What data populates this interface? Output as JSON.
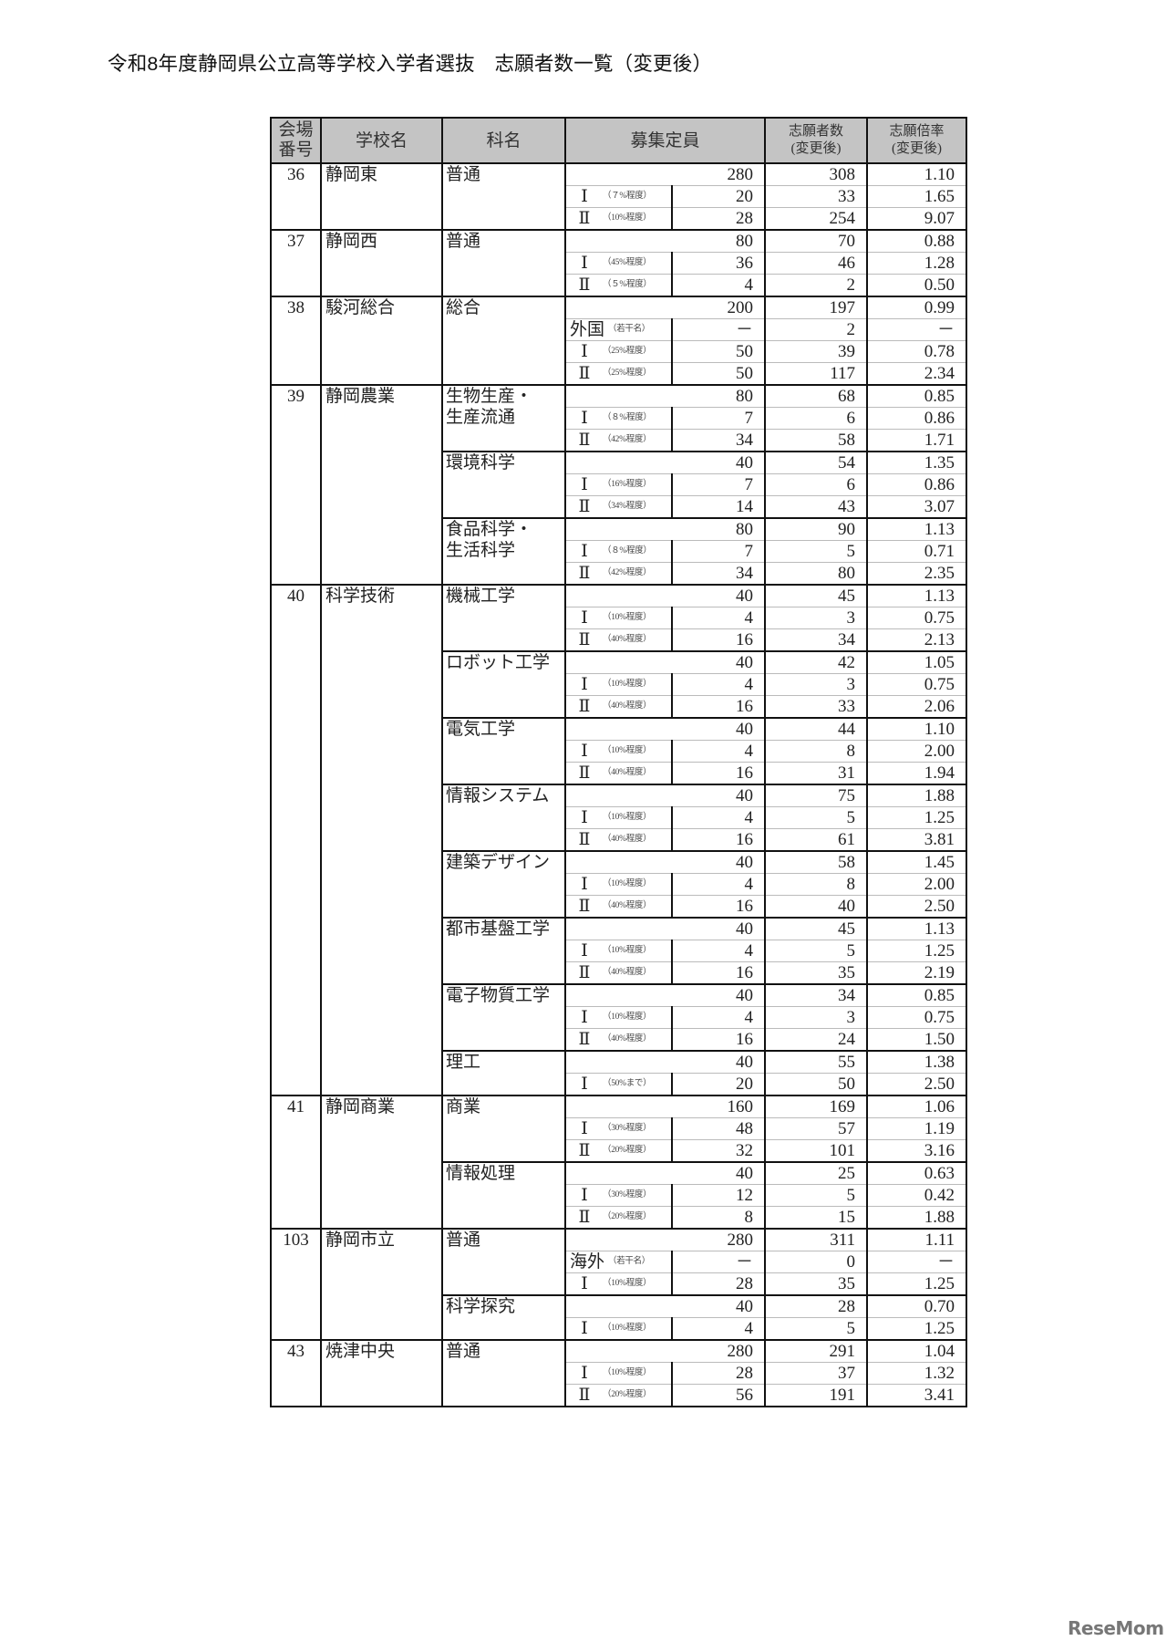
{
  "title": "令和8年度静岡県公立高等学校入学者選抜　志願者数一覧（変更後）",
  "header": {
    "venue_no": [
      "会場",
      "番号"
    ],
    "school": "学校名",
    "dept": "科名",
    "quota": "募集定員",
    "applicants": [
      "志願者数",
      "(変更後)"
    ],
    "ratio": [
      "志願倍率",
      "(変更後)"
    ]
  },
  "schools": [
    {
      "no": "36",
      "name": "静岡東",
      "depts": [
        {
          "name": [
            "普通"
          ],
          "total": [
            "280",
            "308",
            "1.10"
          ],
          "subs": [
            {
              "label": "Ⅰ",
              "note": "（７%程度）",
              "values": [
                "20",
                "33",
                "1.65"
              ]
            },
            {
              "label": "Ⅱ",
              "note": "（10%程度）",
              "values": [
                "28",
                "254",
                "9.07"
              ]
            }
          ]
        }
      ]
    },
    {
      "no": "37",
      "name": "静岡西",
      "depts": [
        {
          "name": [
            "普通"
          ],
          "total": [
            "80",
            "70",
            "0.88"
          ],
          "subs": [
            {
              "label": "Ⅰ",
              "note": "（45%程度）",
              "values": [
                "36",
                "46",
                "1.28"
              ]
            },
            {
              "label": "Ⅱ",
              "note": "（５%程度）",
              "values": [
                "4",
                "2",
                "0.50"
              ]
            }
          ]
        }
      ]
    },
    {
      "no": "38",
      "name": "駿河総合",
      "depts": [
        {
          "name": [
            "総合"
          ],
          "total": [
            "200",
            "197",
            "0.99"
          ],
          "subs": [
            {
              "label": "外国",
              "note": "（若干名）",
              "values": [
                "－",
                "2",
                "－"
              ]
            },
            {
              "label": "Ⅰ",
              "note": "（25%程度）",
              "values": [
                "50",
                "39",
                "0.78"
              ]
            },
            {
              "label": "Ⅱ",
              "note": "（25%程度）",
              "values": [
                "50",
                "117",
                "2.34"
              ]
            }
          ]
        }
      ]
    },
    {
      "no": "39",
      "name": "静岡農業",
      "depts": [
        {
          "name": [
            "生物生産・",
            "生産流通"
          ],
          "total": [
            "80",
            "68",
            "0.85"
          ],
          "subs": [
            {
              "label": "Ⅰ",
              "note": "（８%程度）",
              "values": [
                "7",
                "6",
                "0.86"
              ]
            },
            {
              "label": "Ⅱ",
              "note": "（42%程度）",
              "values": [
                "34",
                "58",
                "1.71"
              ]
            }
          ]
        },
        {
          "name": [
            "環境科学"
          ],
          "total": [
            "40",
            "54",
            "1.35"
          ],
          "subs": [
            {
              "label": "Ⅰ",
              "note": "（16%程度）",
              "values": [
                "7",
                "6",
                "0.86"
              ]
            },
            {
              "label": "Ⅱ",
              "note": "（34%程度）",
              "values": [
                "14",
                "43",
                "3.07"
              ]
            }
          ]
        },
        {
          "name": [
            "食品科学・",
            "生活科学"
          ],
          "total": [
            "80",
            "90",
            "1.13"
          ],
          "subs": [
            {
              "label": "Ⅰ",
              "note": "（８%程度）",
              "values": [
                "7",
                "5",
                "0.71"
              ]
            },
            {
              "label": "Ⅱ",
              "note": "（42%程度）",
              "values": [
                "34",
                "80",
                "2.35"
              ]
            }
          ]
        }
      ]
    },
    {
      "no": "40",
      "name": "科学技術",
      "depts": [
        {
          "name": [
            "機械工学"
          ],
          "total": [
            "40",
            "45",
            "1.13"
          ],
          "subs": [
            {
              "label": "Ⅰ",
              "note": "（10%程度）",
              "values": [
                "4",
                "3",
                "0.75"
              ]
            },
            {
              "label": "Ⅱ",
              "note": "（40%程度）",
              "values": [
                "16",
                "34",
                "2.13"
              ]
            }
          ]
        },
        {
          "name": [
            "ロボット工学"
          ],
          "total": [
            "40",
            "42",
            "1.05"
          ],
          "subs": [
            {
              "label": "Ⅰ",
              "note": "（10%程度）",
              "values": [
                "4",
                "3",
                "0.75"
              ]
            },
            {
              "label": "Ⅱ",
              "note": "（40%程度）",
              "values": [
                "16",
                "33",
                "2.06"
              ]
            }
          ]
        },
        {
          "name": [
            "電気工学"
          ],
          "total": [
            "40",
            "44",
            "1.10"
          ],
          "subs": [
            {
              "label": "Ⅰ",
              "note": "（10%程度）",
              "values": [
                "4",
                "8",
                "2.00"
              ]
            },
            {
              "label": "Ⅱ",
              "note": "（40%程度）",
              "values": [
                "16",
                "31",
                "1.94"
              ]
            }
          ]
        },
        {
          "name": [
            "情報システム"
          ],
          "total": [
            "40",
            "75",
            "1.88"
          ],
          "subs": [
            {
              "label": "Ⅰ",
              "note": "（10%程度）",
              "values": [
                "4",
                "5",
                "1.25"
              ]
            },
            {
              "label": "Ⅱ",
              "note": "（40%程度）",
              "values": [
                "16",
                "61",
                "3.81"
              ]
            }
          ]
        },
        {
          "name": [
            "建築デザイン"
          ],
          "total": [
            "40",
            "58",
            "1.45"
          ],
          "subs": [
            {
              "label": "Ⅰ",
              "note": "（10%程度）",
              "values": [
                "4",
                "8",
                "2.00"
              ]
            },
            {
              "label": "Ⅱ",
              "note": "（40%程度）",
              "values": [
                "16",
                "40",
                "2.50"
              ]
            }
          ]
        },
        {
          "name": [
            "都市基盤工学"
          ],
          "total": [
            "40",
            "45",
            "1.13"
          ],
          "subs": [
            {
              "label": "Ⅰ",
              "note": "（10%程度）",
              "values": [
                "4",
                "5",
                "1.25"
              ]
            },
            {
              "label": "Ⅱ",
              "note": "（40%程度）",
              "values": [
                "16",
                "35",
                "2.19"
              ]
            }
          ]
        },
        {
          "name": [
            "電子物質工学"
          ],
          "total": [
            "40",
            "34",
            "0.85"
          ],
          "subs": [
            {
              "label": "Ⅰ",
              "note": "（10%程度）",
              "values": [
                "4",
                "3",
                "0.75"
              ]
            },
            {
              "label": "Ⅱ",
              "note": "（40%程度）",
              "values": [
                "16",
                "24",
                "1.50"
              ]
            }
          ]
        },
        {
          "name": [
            "理工"
          ],
          "total": [
            "40",
            "55",
            "1.38"
          ],
          "subs": [
            {
              "label": "Ⅰ",
              "note": "（50%まで）",
              "values": [
                "20",
                "50",
                "2.50"
              ]
            }
          ]
        }
      ]
    },
    {
      "no": "41",
      "name": "静岡商業",
      "depts": [
        {
          "name": [
            "商業"
          ],
          "total": [
            "160",
            "169",
            "1.06"
          ],
          "subs": [
            {
              "label": "Ⅰ",
              "note": "（30%程度）",
              "values": [
                "48",
                "57",
                "1.19"
              ]
            },
            {
              "label": "Ⅱ",
              "note": "（20%程度）",
              "values": [
                "32",
                "101",
                "3.16"
              ]
            }
          ]
        },
        {
          "name": [
            "情報処理"
          ],
          "total": [
            "40",
            "25",
            "0.63"
          ],
          "subs": [
            {
              "label": "Ⅰ",
              "note": "（30%程度）",
              "values": [
                "12",
                "5",
                "0.42"
              ]
            },
            {
              "label": "Ⅱ",
              "note": "（20%程度）",
              "values": [
                "8",
                "15",
                "1.88"
              ]
            }
          ]
        }
      ]
    },
    {
      "no": "103",
      "name": "静岡市立",
      "depts": [
        {
          "name": [
            "普通"
          ],
          "total": [
            "280",
            "311",
            "1.11"
          ],
          "subs": [
            {
              "label": "海外",
              "note": "（若干名）",
              "values": [
                "－",
                "0",
                "－"
              ]
            },
            {
              "label": "Ⅰ",
              "note": "（10%程度）",
              "values": [
                "28",
                "35",
                "1.25"
              ]
            }
          ]
        },
        {
          "name": [
            "科学探究"
          ],
          "total": [
            "40",
            "28",
            "0.70"
          ],
          "subs": [
            {
              "label": "Ⅰ",
              "note": "（10%程度）",
              "values": [
                "4",
                "5",
                "1.25"
              ]
            }
          ]
        }
      ]
    },
    {
      "no": "43",
      "name": "焼津中央",
      "depts": [
        {
          "name": [
            "普通"
          ],
          "total": [
            "280",
            "291",
            "1.04"
          ],
          "subs": [
            {
              "label": "Ⅰ",
              "note": "（10%程度）",
              "values": [
                "28",
                "37",
                "1.32"
              ]
            },
            {
              "label": "Ⅱ",
              "note": "（20%程度）",
              "values": [
                "56",
                "191",
                "3.41"
              ]
            }
          ]
        }
      ]
    }
  ],
  "watermark": "ReseMom"
}
